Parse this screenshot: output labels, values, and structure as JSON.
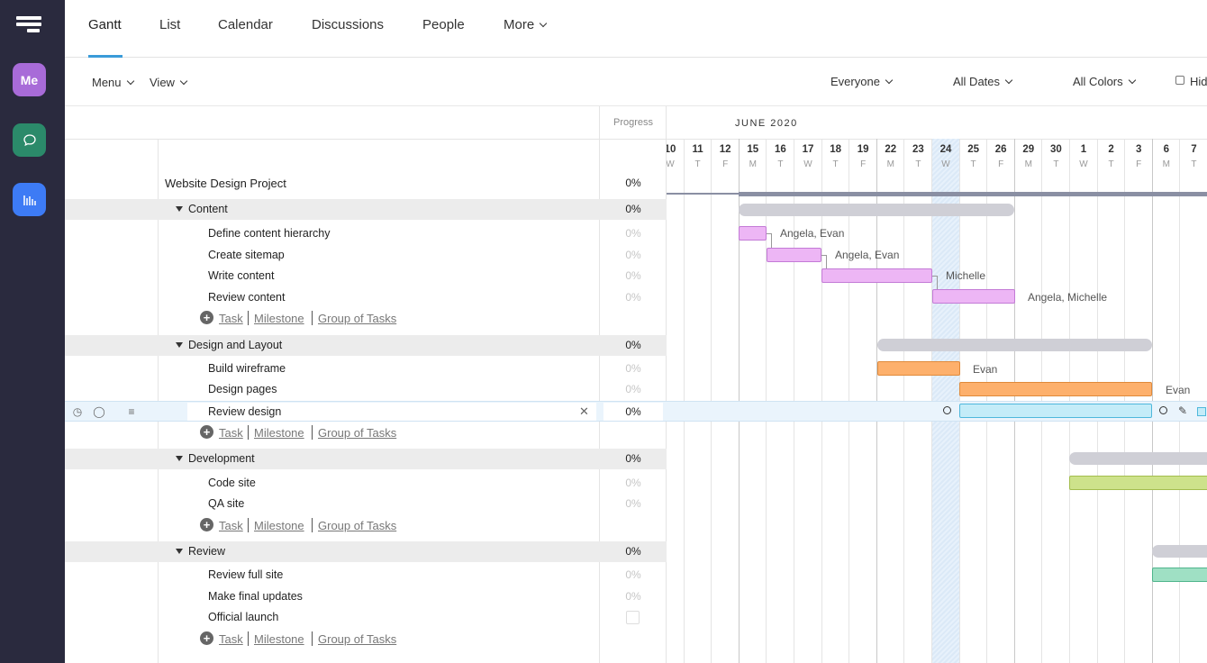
{
  "tabs": [
    "Gantt",
    "List",
    "Calendar",
    "Discussions",
    "People",
    "More"
  ],
  "sidebar": {
    "me_label": "Me"
  },
  "toolbar": {
    "menu": "Menu",
    "view": "View",
    "filter_people": "Everyone",
    "filter_dates": "All Dates",
    "filter_colors": "All Colors",
    "hide": "Hid"
  },
  "table": {
    "progress_header": "Progress",
    "project": {
      "name": "Website Design Project",
      "progress": "0%"
    },
    "add_links": {
      "task": "Task",
      "milestone": "Milestone",
      "group": "Group of Tasks"
    },
    "groups": [
      {
        "name": "Content",
        "progress": "0%",
        "tasks": [
          {
            "name": "Define content hierarchy",
            "progress": "0%"
          },
          {
            "name": "Create sitemap",
            "progress": "0%"
          },
          {
            "name": "Write content",
            "progress": "0%"
          },
          {
            "name": "Review content",
            "progress": "0%"
          }
        ]
      },
      {
        "name": "Design and Layout",
        "progress": "0%",
        "tasks": [
          {
            "name": "Build wireframe",
            "progress": "0%"
          },
          {
            "name": "Design pages",
            "progress": "0%"
          },
          {
            "name": "Review design",
            "progress": "0%"
          }
        ]
      },
      {
        "name": "Development",
        "progress": "0%",
        "tasks": [
          {
            "name": "Code site",
            "progress": "0%"
          },
          {
            "name": "QA site",
            "progress": "0%"
          }
        ]
      },
      {
        "name": "Review",
        "progress": "0%",
        "tasks": [
          {
            "name": "Review full site",
            "progress": "0%"
          },
          {
            "name": "Make final updates",
            "progress": "0%"
          },
          {
            "name": "Official launch",
            "progress": ""
          }
        ]
      }
    ]
  },
  "gantt": {
    "month": "JUNE 2020",
    "days": [
      {
        "n": "10",
        "w": "W"
      },
      {
        "n": "11",
        "w": "T"
      },
      {
        "n": "12",
        "w": "F"
      },
      {
        "n": "15",
        "w": "M"
      },
      {
        "n": "16",
        "w": "T"
      },
      {
        "n": "17",
        "w": "W"
      },
      {
        "n": "18",
        "w": "T"
      },
      {
        "n": "19",
        "w": "F"
      },
      {
        "n": "22",
        "w": "M"
      },
      {
        "n": "23",
        "w": "T"
      },
      {
        "n": "24",
        "w": "W"
      },
      {
        "n": "25",
        "w": "T"
      },
      {
        "n": "26",
        "w": "F"
      },
      {
        "n": "29",
        "w": "M"
      },
      {
        "n": "30",
        "w": "T"
      },
      {
        "n": "1",
        "w": "W"
      },
      {
        "n": "2",
        "w": "T"
      },
      {
        "n": "3",
        "w": "F"
      },
      {
        "n": "6",
        "w": "M"
      },
      {
        "n": "7",
        "w": "T"
      }
    ],
    "today": "24",
    "assignees": {
      "define": "Angela, Evan",
      "sitemap": "Angela, Evan",
      "write": "Michelle",
      "review_content": "Angela, Michelle",
      "wireframe": "Evan",
      "design_pages": "Evan"
    },
    "colors": {
      "purple": "#edb6f5",
      "orange": "#fdb06c",
      "cyan": "#c4ecf8",
      "green": "#cde28b",
      "teal": "#9fe0c4",
      "summary": "#cfcfd6"
    }
  }
}
